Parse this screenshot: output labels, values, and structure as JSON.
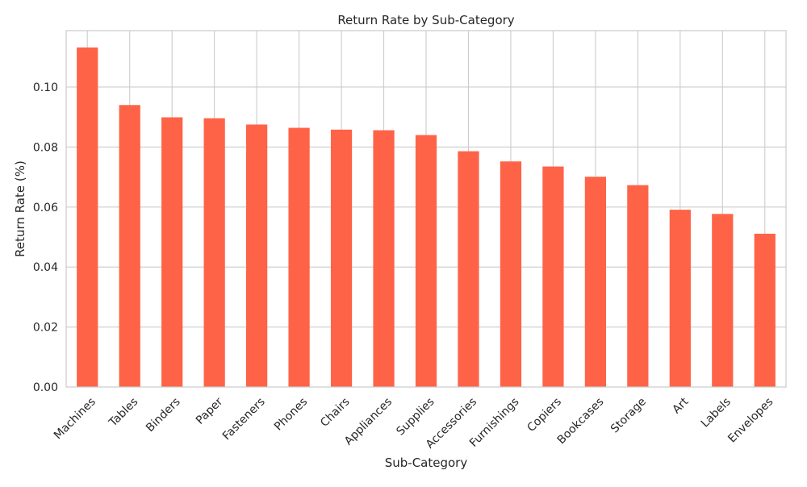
{
  "chart_data": {
    "type": "bar",
    "title": "Return Rate by Sub-Category",
    "xlabel": "Sub-Category",
    "ylabel": "Return Rate (%)",
    "categories": [
      "Machines",
      "Tables",
      "Binders",
      "Paper",
      "Fasteners",
      "Phones",
      "Chairs",
      "Appliances",
      "Supplies",
      "Accessories",
      "Furnishings",
      "Copiers",
      "Bookcases",
      "Storage",
      "Art",
      "Labels",
      "Envelopes"
    ],
    "values": [
      0.1132,
      0.094,
      0.0899,
      0.0896,
      0.0875,
      0.0864,
      0.0858,
      0.0856,
      0.084,
      0.0786,
      0.0752,
      0.0735,
      0.0701,
      0.0673,
      0.0591,
      0.0577,
      0.0511
    ],
    "ylim": [
      0,
      0.1188
    ],
    "yticks": [
      "0.00",
      "0.02",
      "0.04",
      "0.06",
      "0.08",
      "0.10"
    ],
    "grid": true,
    "bar_color": "#ff6347"
  }
}
